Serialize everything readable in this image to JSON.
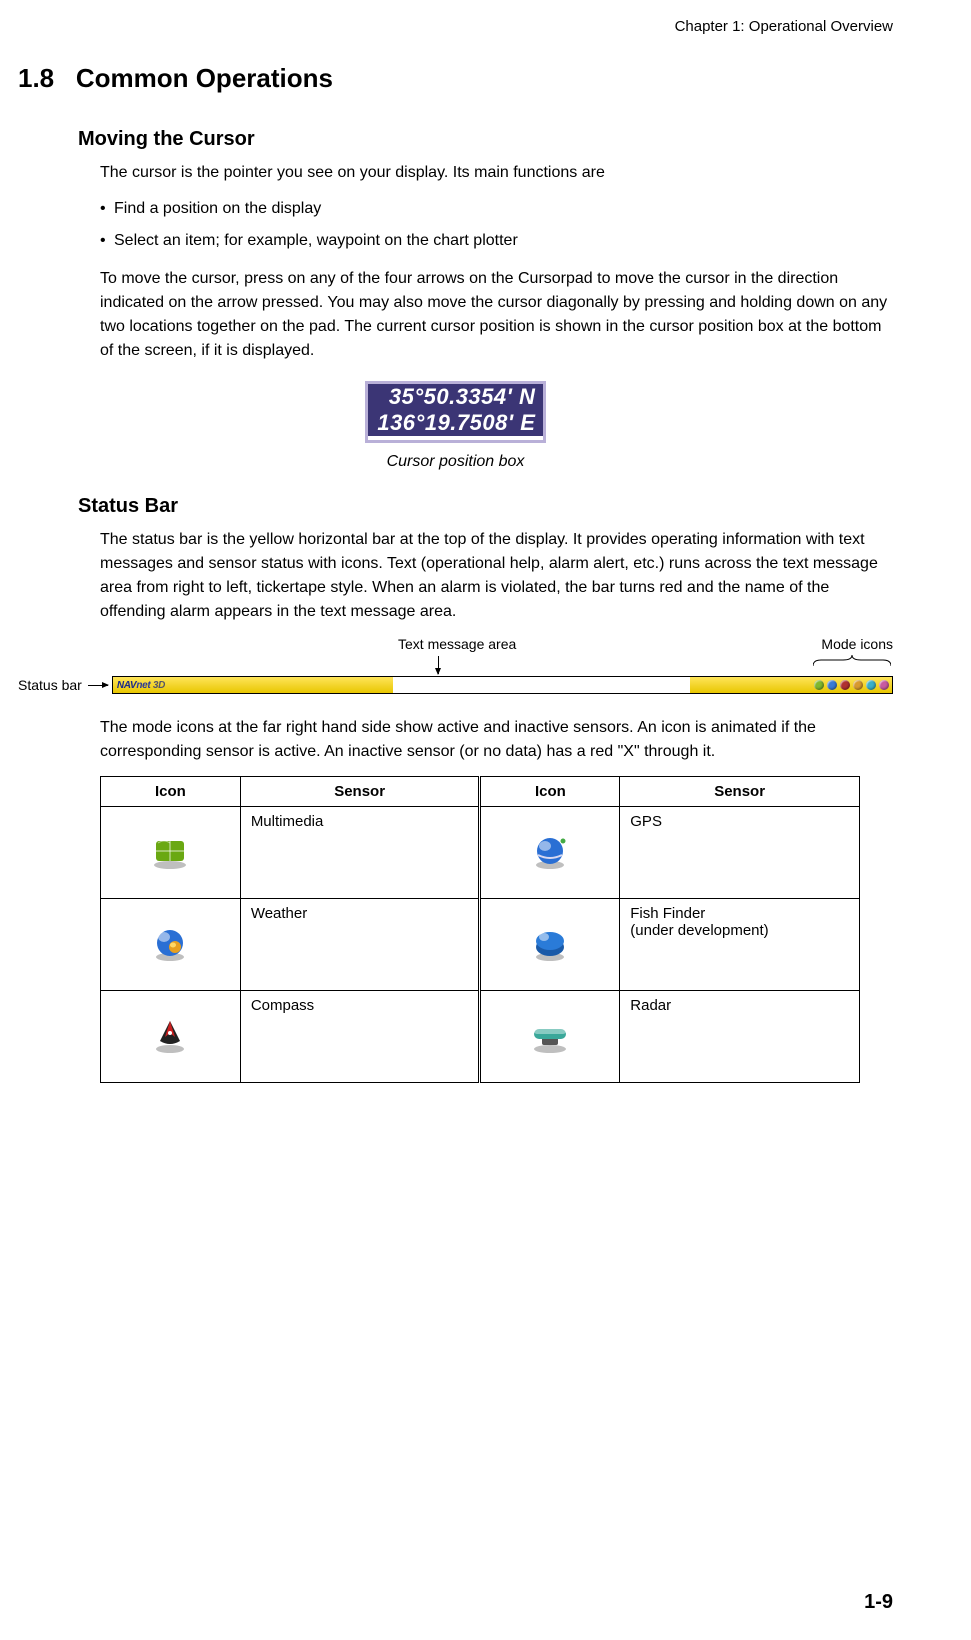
{
  "chapter_header": "Chapter 1: Operational Overview",
  "section": {
    "number": "1.8",
    "title": "Common Operations"
  },
  "sub1": {
    "title": "Moving the Cursor",
    "intro": "The cursor is the pointer you see on your display. Its main functions are",
    "bullets": [
      "Find a position on the display",
      "Select an item; for example, waypoint on the chart plotter"
    ],
    "para2": "To move the cursor, press on any of the four arrows on the Cursorpad to move the cursor in the direction indicated on the arrow pressed. You may also move the cursor diagonally by pressing and holding down on any two locations together on the pad. The current cursor position is shown in the cursor position box at the bottom of the screen, if it is displayed."
  },
  "cursor_box": {
    "lat": "  35°50.3354' N",
    "lon": "136°19.7508' E",
    "caption": "Cursor position box",
    "bg_color": "#3b3575",
    "text_color": "#ffffff",
    "border_color": "#b9b0d8"
  },
  "sub2": {
    "title": "Status Bar",
    "para1": "The status bar is the yellow horizontal bar at the top of the display. It provides operating information with text messages and sensor status with icons. Text (operational help, alarm alert, etc.) runs across the text message area from right to left, tickertape style. When an alarm is violated, the bar turns red and the name of the offending alarm appears in the text message area.",
    "labels": {
      "text_area": "Text message area",
      "mode_icons": "Mode icons",
      "status_bar": "Status bar"
    },
    "logo": {
      "nav": "NAV",
      "net": "net",
      "threed": " 3D"
    },
    "mode_dot_colors": [
      "#7fb82e",
      "#3a7bd5",
      "#b03030",
      "#d89a2e",
      "#3ab0c8",
      "#c85aa0"
    ],
    "para2": "The mode icons at the far right hand side show active and inactive sensors. An icon is animated if the corresponding sensor is active. An inactive sensor (or no data) has a red \"X\" through it."
  },
  "sensor_table": {
    "headers": [
      "Icon",
      "Sensor",
      "Icon",
      "Sensor"
    ],
    "rows": [
      {
        "left": {
          "name": "multimedia-icon",
          "label": "Multimedia",
          "color": "#6aa812"
        },
        "right": {
          "name": "gps-icon",
          "label": "GPS",
          "color": "#2a6fd4"
        }
      },
      {
        "left": {
          "name": "weather-icon",
          "label": "Weather",
          "color": "#e8a020"
        },
        "right": {
          "name": "fish-finder-icon",
          "label": "Fish Finder\n(under development)",
          "color": "#1a5aa8"
        }
      },
      {
        "left": {
          "name": "compass-icon",
          "label": "Compass",
          "color": "#c82020"
        },
        "right": {
          "name": "radar-icon",
          "label": "Radar",
          "color": "#3aa89a"
        }
      }
    ]
  },
  "page_number": "1-9"
}
